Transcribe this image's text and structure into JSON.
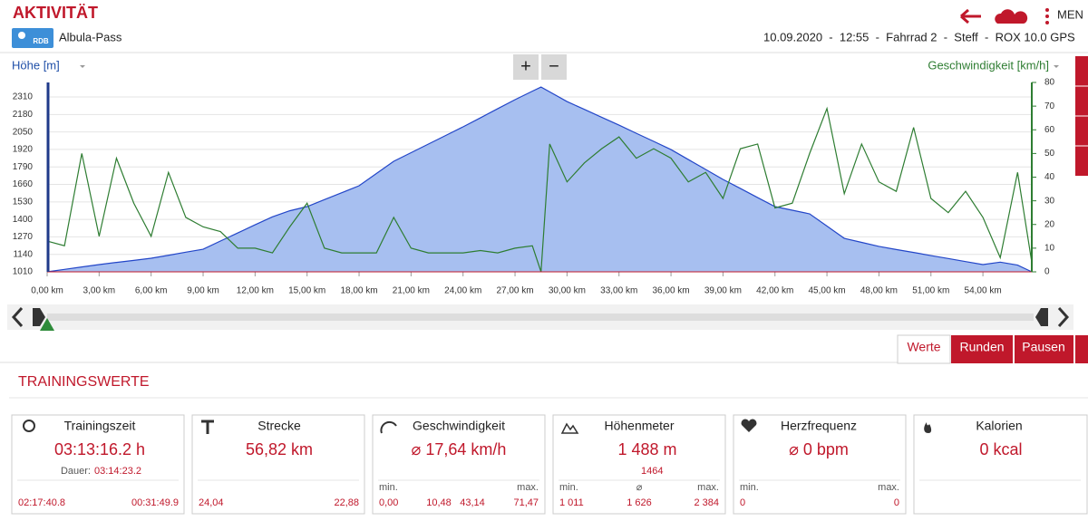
{
  "header": {
    "title": "AKTIVITÄT",
    "badge": "RDB",
    "route": "Albula-Pass",
    "info": "10.09.2020  -  12:55  -  Fahrrad 2  -  Steff  -  ROX 10.0 GPS",
    "menu": "MEN"
  },
  "chart_data": {
    "type": "line",
    "left_axis_label": "Höhe [m]",
    "right_axis_label": "Geschwindigkeit [km/h]",
    "zoom_in": "+",
    "zoom_out": "−",
    "x": [
      0,
      1,
      2,
      3,
      4,
      5,
      6,
      7,
      8,
      9,
      10,
      11,
      12,
      13,
      14,
      15,
      16,
      17,
      18,
      19,
      20,
      21,
      22,
      23,
      24,
      25,
      26,
      27,
      28,
      28.5,
      29,
      30,
      31,
      32,
      33,
      34,
      35,
      36,
      37,
      38,
      39,
      40,
      41,
      42,
      43,
      44,
      45,
      46,
      47,
      48,
      49,
      50,
      51,
      52,
      53,
      54,
      55,
      56,
      56.82
    ],
    "xlim": [
      0,
      56.82
    ],
    "xticks": [
      {
        "value": 0,
        "label": "0,00 km"
      },
      {
        "value": 3,
        "label": "3,00 km"
      },
      {
        "value": 6,
        "label": "6,00 km"
      },
      {
        "value": 9,
        "label": "9,00 km"
      },
      {
        "value": 12,
        "label": "12,00 km"
      },
      {
        "value": 15,
        "label": "15,00 km"
      },
      {
        "value": 18,
        "label": "18,00 km"
      },
      {
        "value": 21,
        "label": "21,00 km"
      },
      {
        "value": 24,
        "label": "24,00 km"
      },
      {
        "value": 27,
        "label": "27,00 km"
      },
      {
        "value": 30,
        "label": "30,00 km"
      },
      {
        "value": 33,
        "label": "33,00 km"
      },
      {
        "value": 36,
        "label": "36,00 km"
      },
      {
        "value": 39,
        "label": "39,00 km"
      },
      {
        "value": 42,
        "label": "42,00 km"
      },
      {
        "value": 45,
        "label": "45,00 km"
      },
      {
        "value": 48,
        "label": "48,00 km"
      },
      {
        "value": 51,
        "label": "51,00 km"
      },
      {
        "value": 54,
        "label": "54,00 km"
      }
    ],
    "ylim": [
      1010,
      2418
    ],
    "yticks": [
      1010,
      1140,
      1270,
      1400,
      1530,
      1660,
      1790,
      1920,
      2050,
      2180,
      2310
    ],
    "y2lim": [
      0,
      80
    ],
    "y2ticks": [
      0,
      10,
      20,
      30,
      40,
      50,
      60,
      70,
      80
    ],
    "grid": true,
    "series": [
      {
        "name": "Höhe",
        "color": "#2346c8",
        "fill": "#a7bff0",
        "values": [
          1010,
          1028,
          1046,
          1064,
          1080,
          1095,
          1111,
          1133,
          1156,
          1178,
          1239,
          1299,
          1360,
          1419,
          1464,
          1495,
          1547,
          1598,
          1650,
          1741,
          1832,
          1896,
          1960,
          2024,
          2088,
          2155,
          2223,
          2290,
          2353,
          2384,
          2348,
          2276,
          2218,
          2159,
          2101,
          2040,
          1980,
          1919,
          1845,
          1771,
          1697,
          1630,
          1562,
          1495,
          1468,
          1441,
          1350,
          1259,
          1229,
          1199,
          1176,
          1154,
          1131,
          1109,
          1086,
          1064,
          1082,
          1060,
          1010
        ]
      },
      {
        "name": "Geschwindigkeit",
        "color": "#2e7d32",
        "axis": "y2",
        "values": [
          13,
          11,
          50,
          15,
          48,
          29,
          15,
          42,
          23,
          19,
          17,
          10,
          10,
          8,
          19,
          29,
          10,
          8,
          8,
          8,
          23,
          10,
          8,
          8,
          8,
          9,
          8,
          10,
          11,
          0,
          54,
          38,
          46,
          52,
          57,
          48,
          52,
          48,
          38,
          42,
          31,
          52,
          54,
          27,
          29,
          50,
          69,
          33,
          54,
          38,
          34,
          61,
          31,
          25,
          34,
          23,
          6,
          42,
          4
        ]
      }
    ]
  },
  "tabs": [
    "Werte",
    "Runden",
    "Pausen"
  ],
  "section_title": "TRAININGSWERTE",
  "cards": [
    {
      "title": "Trainingszeit",
      "main": "03:13:16.2 h",
      "duration_label": "Dauer:",
      "duration": "03:14:23.2",
      "up": "02:17:40.8",
      "down": "00:31:49.9"
    },
    {
      "title": "Strecke",
      "main": "56,82 km",
      "up": "24,04",
      "down": "22,88"
    },
    {
      "title": "Geschwindigkeit",
      "main": "⌀ 17,64 km/h",
      "min_label": "min.",
      "max_label": "max.",
      "min": "0,00",
      "avg_up": "10,48",
      "avg_down": "43,14",
      "max": "71,47"
    },
    {
      "title": "Höhenmeter",
      "main": "1 488 m",
      "sub": "1464",
      "min_label": "min.",
      "avg_label": "⌀",
      "max_label": "max.",
      "min": "1 011",
      "avg": "1 626",
      "max": "2 384"
    },
    {
      "title": "Herzfrequenz",
      "main": "⌀ 0 bpm",
      "min_label": "min.",
      "max_label": "max.",
      "min": "0",
      "max": "0"
    },
    {
      "title": "Kalorien",
      "main": "0 kcal"
    }
  ]
}
